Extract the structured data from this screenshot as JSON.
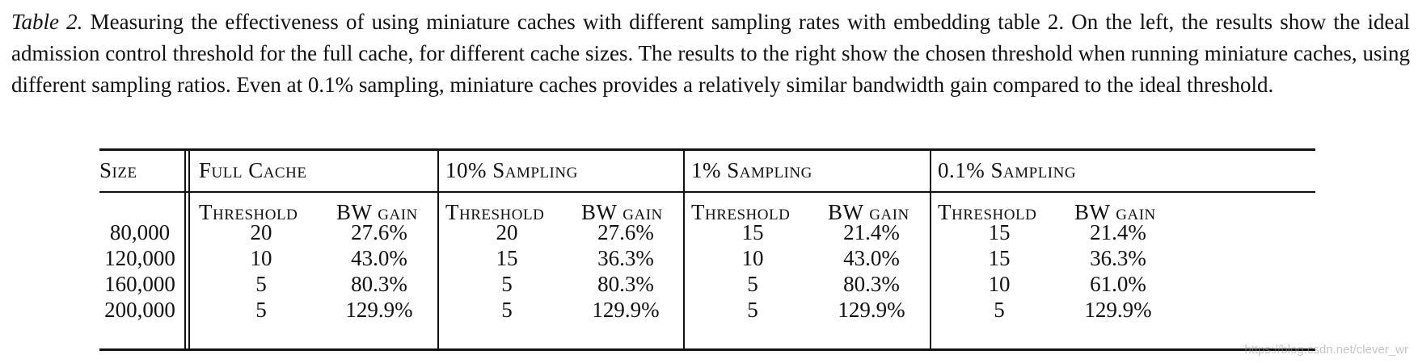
{
  "caption": {
    "label": "Table 2.",
    "text": "Measuring the effectiveness of using miniature caches with different sampling rates with embedding table 2. On the left, the results show the ideal admission control threshold for the full cache, for different cache sizes. The results to the right show the chosen threshold when running miniature caches, using different sampling ratios. Even at 0.1% sampling, miniature caches provides a relatively similar bandwidth gain compared to the ideal threshold."
  },
  "table": {
    "size_header": "Size",
    "groups": [
      "Full Cache",
      "10% Sampling",
      "1% Sampling",
      "0.1% Sampling"
    ],
    "sub_headers": [
      "Threshold",
      "BW gain"
    ],
    "rows": [
      {
        "size": "80,000",
        "vals": [
          "20",
          "27.6%",
          "20",
          "27.6%",
          "15",
          "21.4%",
          "15",
          "21.4%"
        ]
      },
      {
        "size": "120,000",
        "vals": [
          "10",
          "43.0%",
          "15",
          "36.3%",
          "10",
          "43.0%",
          "15",
          "36.3%"
        ]
      },
      {
        "size": "160,000",
        "vals": [
          "5",
          "80.3%",
          "5",
          "80.3%",
          "5",
          "80.3%",
          "10",
          "61.0%"
        ]
      },
      {
        "size": "200,000",
        "vals": [
          "5",
          "129.9%",
          "5",
          "129.9%",
          "5",
          "129.9%",
          "5",
          "129.9%"
        ]
      }
    ]
  },
  "watermark": "https://blog.csdn.net/clever_wr"
}
